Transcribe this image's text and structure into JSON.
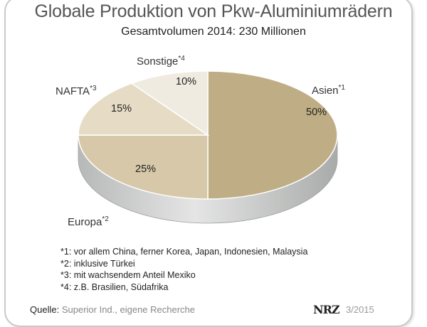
{
  "chart_data": {
    "type": "pie",
    "title": "Globale Produktion von Pkw-Aluminiumrädern",
    "subtitle": "Gesamtvolumen 2014: 230 Millionen",
    "slices": [
      {
        "label": "Asien",
        "marker": "*1",
        "value": 50,
        "value_label": "50%",
        "color": "#bfae85"
      },
      {
        "label": "Europa",
        "marker": "*2",
        "value": 25,
        "value_label": "25%",
        "color": "#d6c8a8"
      },
      {
        "label": "NAFTA",
        "marker": "*3",
        "value": 15,
        "value_label": "15%",
        "color": "#e6dcc6"
      },
      {
        "label": "Sonstige",
        "marker": "*4",
        "value": 10,
        "value_label": "10%",
        "color": "#f0ebe1"
      }
    ],
    "side_color": "#c7c9c9",
    "legend": "none"
  },
  "footnotes": [
    "*1: vor allem China, ferner Korea, Japan, Indonesien, Malaysia",
    "*2: inklusive Türkei",
    "*3: mit wachsendem Anteil Mexiko",
    "*4: z.B. Brasilien, Südafrika"
  ],
  "source": {
    "label": "Quelle:",
    "text": "Superior Ind., eigene Recherche"
  },
  "logo": "NRZ",
  "date": "3/2015"
}
